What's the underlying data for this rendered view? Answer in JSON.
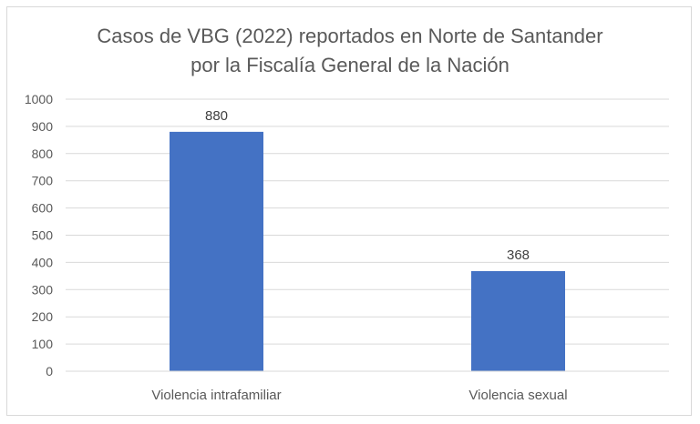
{
  "chart_data": {
    "type": "bar",
    "title_lines": [
      "Casos de VBG (2022) reportados en Norte de Santander",
      "por la Fiscalía General de la Nación"
    ],
    "categories": [
      "Violencia intrafamiliar",
      "Violencia sexual"
    ],
    "values": [
      880,
      368
    ],
    "data_labels": [
      "880",
      "368"
    ],
    "y_ticks": [
      "0",
      "100",
      "200",
      "300",
      "400",
      "500",
      "600",
      "700",
      "800",
      "900",
      "1000"
    ],
    "ylim": [
      0,
      1000
    ],
    "xlabel": "",
    "ylabel": "",
    "grid": true,
    "legend": "none",
    "bar_color": "#4472c4",
    "grid_color": "#d9d9d9"
  }
}
